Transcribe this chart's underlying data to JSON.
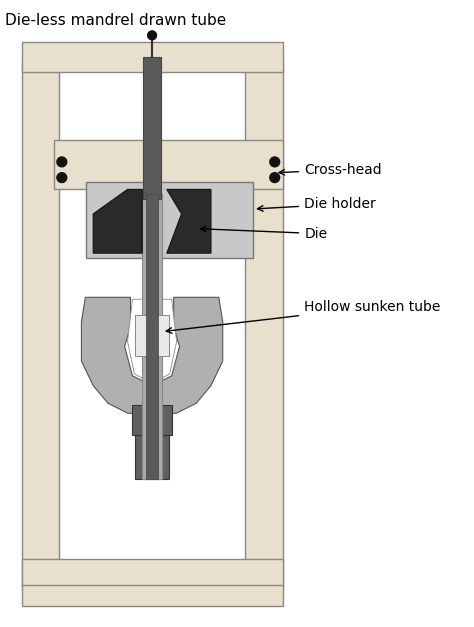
{
  "bg_color": "#ffffff",
  "col_color": "#e8e0cc",
  "col_stroke": "#888888",
  "crosshead_color": "#e8e0cc",
  "dieholder_color": "#c8c8c8",
  "die_color": "#2a2a2a",
  "mandrel_dark": "#5a5a5a",
  "mandrel_light": "#aaaaaa",
  "gripper_outer_color": "#b0b0b0",
  "gripper_mid_color": "#d0d0d0",
  "gripper_inner_color": "#e8e8e8",
  "gripper_stem_color": "#606060",
  "base_color": "#e8e0cc",
  "dot_color": "#111111",
  "title": "Die-less mandrel drawn tube",
  "label_crosshead": "Cross-head",
  "label_dieholder": "Die holder",
  "label_die": "Die",
  "label_hollow": "Hollow sunken tube",
  "fs_title": 11,
  "fs_label": 10
}
